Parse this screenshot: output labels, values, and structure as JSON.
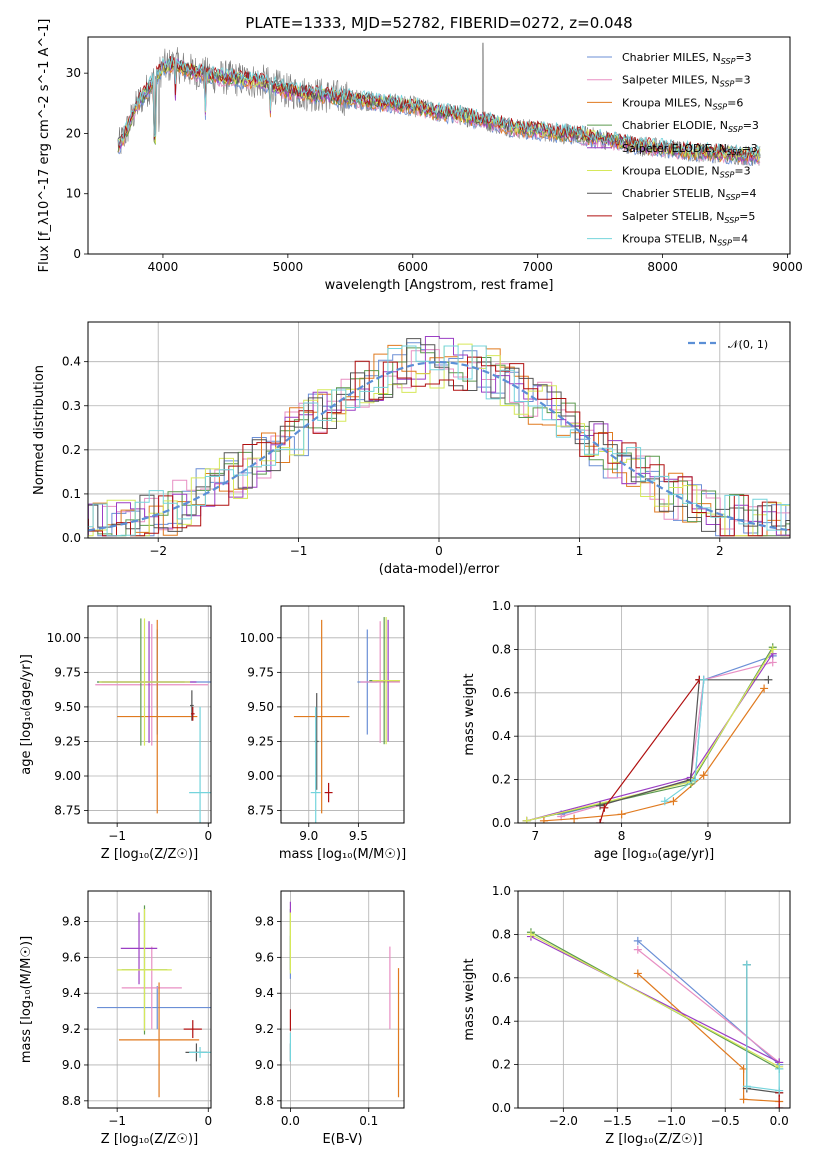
{
  "colors": {
    "Chabrier MILES": "#6b8fd6",
    "Salpeter MILES": "#e88fc3",
    "Kroupa MILES": "#e07a1f",
    "Chabrier ELODIE": "#5c9a4f",
    "Salpeter ELODIE": "#9b3fc4",
    "Kroupa ELODIE": "#d6e85a",
    "Chabrier STELIB": "#555555",
    "Salpeter STELIB": "#b01010",
    "Kroupa STELIB": "#74d4dc"
  },
  "chart_data": [
    {
      "id": "spectrum",
      "type": "line",
      "title": "PLATE=1333, MJD=52782, FIBERID=0272, z=0.048",
      "xlabel": "wavelength [Angstrom, rest frame]",
      "ylabel": "Flux [f_λ10^-17 erg cm^-2 s^-1 A^-1]",
      "xlim": [
        3400,
        9020
      ],
      "ylim": [
        0,
        36
      ],
      "xticks": [
        4000,
        5000,
        6000,
        7000,
        8000,
        9000
      ],
      "yticks": [
        0,
        10,
        20,
        30
      ],
      "grid": false,
      "legend_position": "top-right",
      "legend": [
        {
          "label": "Chabrier MILES, N",
          "sub": "SSP",
          "value": "=3"
        },
        {
          "label": "Salpeter MILES, N",
          "sub": "SSP",
          "value": "=3"
        },
        {
          "label": "Kroupa MILES, N",
          "sub": "SSP",
          "value": "=6"
        },
        {
          "label": "Chabrier ELODIE, N",
          "sub": "SSP",
          "value": "=3"
        },
        {
          "label": "Salpeter ELODIE, N",
          "sub": "SSP",
          "value": "=3"
        },
        {
          "label": "Kroupa ELODIE, N",
          "sub": "SSP",
          "value": "=3"
        },
        {
          "label": "Chabrier STELIB, N",
          "sub": "SSP",
          "value": "=4"
        },
        {
          "label": "Salpeter STELIB, N",
          "sub": "SSP",
          "value": "=5"
        },
        {
          "label": "Kroupa STELIB, N",
          "sub": "SSP",
          "value": "=4"
        }
      ],
      "continuum": {
        "x": [
          3650,
          3700,
          3800,
          3900,
          4000,
          4100,
          4200,
          4400,
          4600,
          4800,
          5000,
          5200,
          5400,
          5600,
          5800,
          6000,
          6200,
          6400,
          6600,
          6800,
          7000,
          7200,
          7400,
          7600,
          7800,
          8000,
          8200,
          8400,
          8600,
          8780
        ],
        "y": [
          18,
          20,
          25,
          28,
          31,
          31.5,
          30.5,
          29.5,
          29,
          28.5,
          27,
          26.5,
          26,
          25.5,
          25,
          24.5,
          23.5,
          23,
          22,
          21,
          20.5,
          20,
          19.5,
          18.8,
          18,
          17.5,
          17,
          16.8,
          16.5,
          16.2
        ]
      }
    },
    {
      "id": "residuals",
      "type": "line",
      "xlabel": "(data-model)/error",
      "ylabel": "Normed distribution",
      "xlim": [
        -2.5,
        2.5
      ],
      "ylim": [
        0,
        0.49
      ],
      "xticks": [
        -2,
        -1,
        0,
        1,
        2
      ],
      "yticks": [
        0.0,
        0.1,
        0.2,
        0.3,
        0.4
      ],
      "grid": true,
      "legend_position": "top-right",
      "legend": [
        "𝒩(0, 1)"
      ],
      "gaussian": {
        "mean": 0,
        "sigma": 1,
        "color": "#5b8fd6"
      }
    },
    {
      "id": "age-vs-Z",
      "type": "scatter",
      "xlabel": "Z [log₁₀(Z/Z☉)]",
      "ylabel": "age  [log₁₀(age/yr)]",
      "xlim": [
        -1.32,
        0.03
      ],
      "ylim": [
        8.66,
        10.23
      ],
      "xticks": [
        -1,
        0
      ],
      "yticks": [
        8.75,
        9.0,
        9.25,
        9.5,
        9.75,
        10.0
      ],
      "grid": true,
      "points": [
        {
          "series": "Chabrier MILES",
          "x": -0.56,
          "y": 9.68,
          "xerr": 0.66,
          "yerr": 0.38
        },
        {
          "series": "Salpeter MILES",
          "x": -0.62,
          "y": 9.66,
          "xerr": 0.62,
          "yerr": 0.44
        },
        {
          "series": "Kroupa MILES",
          "x": -0.56,
          "y": 9.43,
          "xerr": 0.44,
          "yerr": 0.7
        },
        {
          "series": "Chabrier ELODIE",
          "x": -0.74,
          "y": 9.68,
          "xerr": 0.48,
          "yerr": 0.46
        },
        {
          "series": "Salpeter ELODIE",
          "x": -0.65,
          "y": 9.68,
          "xerr": 0.52,
          "yerr": 0.44
        },
        {
          "series": "Kroupa ELODIE",
          "x": -0.7,
          "y": 9.68,
          "xerr": 0.5,
          "yerr": 0.46
        },
        {
          "series": "Chabrier STELIB",
          "x": -0.18,
          "y": 9.51,
          "xerr": 0.02,
          "yerr": 0.11
        },
        {
          "series": "Salpeter STELIB",
          "x": -0.17,
          "y": 9.45,
          "xerr": 0.02,
          "yerr": 0.05
        },
        {
          "series": "Kroupa STELIB",
          "x": -0.09,
          "y": 8.88,
          "xerr": 0.12,
          "yerr": 0.62
        }
      ]
    },
    {
      "id": "age-vs-mass",
      "type": "scatter",
      "xlabel": "mass [log₁₀(M/M☉)]",
      "ylabel": "",
      "xlim": [
        8.72,
        9.96
      ],
      "ylim": [
        8.66,
        10.23
      ],
      "xticks": [
        9.0,
        9.5
      ],
      "xtick_labels": [
        "9.0",
        "9.5"
      ],
      "yticks": [
        8.75,
        9.0,
        9.25,
        9.5,
        9.75,
        10.0
      ],
      "grid": true,
      "points": [
        {
          "series": "Chabrier MILES",
          "x": 9.59,
          "y": 9.68,
          "xerr": 0.1,
          "yerr": 0.38
        },
        {
          "series": "Salpeter MILES",
          "x": 9.72,
          "y": 9.68,
          "xerr": 0.2,
          "yerr": 0.44
        },
        {
          "series": "Kroupa MILES",
          "x": 9.13,
          "y": 9.43,
          "xerr": 0.28,
          "yerr": 0.7
        },
        {
          "series": "Chabrier ELODIE",
          "x": 9.76,
          "y": 9.69,
          "xerr": 0.15,
          "yerr": 0.46
        },
        {
          "series": "Salpeter ELODIE",
          "x": 9.8,
          "y": 9.69,
          "xerr": 0.12,
          "yerr": 0.44
        },
        {
          "series": "Kroupa ELODIE",
          "x": 9.78,
          "y": 9.69,
          "xerr": 0.14,
          "yerr": 0.46
        },
        {
          "series": "Chabrier STELIB",
          "x": 9.08,
          "y": 9.25,
          "xerr": 0.02,
          "yerr": 0.35
        },
        {
          "series": "Salpeter STELIB",
          "x": 9.2,
          "y": 8.88,
          "xerr": 0.04,
          "yerr": 0.07
        },
        {
          "series": "Kroupa STELIB",
          "x": 9.07,
          "y": 8.88,
          "xerr": 0.05,
          "yerr": 0.62
        }
      ]
    },
    {
      "id": "weight-vs-age",
      "type": "line",
      "xlabel": "age  [log₁₀(age/yr)]",
      "ylabel": "mass weight",
      "xlim": [
        6.8,
        9.95
      ],
      "ylim": [
        0.0,
        1.0
      ],
      "xticks": [
        7,
        8,
        9
      ],
      "yticks": [
        0.0,
        0.2,
        0.4,
        0.6,
        0.8,
        1.0
      ],
      "grid": true,
      "series": [
        {
          "name": "Chabrier MILES",
          "x": [
            7.3,
            8.85,
            8.95,
            9.75
          ],
          "y": [
            0.04,
            0.2,
            0.66,
            0.77
          ]
        },
        {
          "name": "Salpeter MILES",
          "x": [
            7.3,
            8.8,
            8.95,
            9.75
          ],
          "y": [
            0.03,
            0.2,
            0.66,
            0.74
          ]
        },
        {
          "name": "Kroupa MILES",
          "x": [
            7.1,
            7.45,
            8.0,
            8.6,
            8.95,
            9.65
          ],
          "y": [
            0.01,
            0.02,
            0.04,
            0.1,
            0.22,
            0.62
          ]
        },
        {
          "name": "Chabrier ELODIE",
          "x": [
            6.9,
            8.8,
            9.75
          ],
          "y": [
            0.01,
            0.18,
            0.81
          ]
        },
        {
          "name": "Salpeter ELODIE",
          "x": [
            6.9,
            8.8,
            9.75
          ],
          "y": [
            0.01,
            0.21,
            0.78
          ]
        },
        {
          "name": "Kroupa ELODIE",
          "x": [
            6.9,
            8.8,
            9.75
          ],
          "y": [
            0.01,
            0.19,
            0.8
          ]
        },
        {
          "name": "Chabrier STELIB",
          "x": [
            7.75,
            8.8,
            8.9,
            9.7
          ],
          "y": [
            0.08,
            0.2,
            0.66,
            0.66
          ]
        },
        {
          "name": "Salpeter STELIB",
          "x": [
            7.75,
            7.8,
            8.9
          ],
          "y": [
            0.0,
            0.07,
            0.66
          ]
        },
        {
          "name": "Kroupa STELIB",
          "x": [
            8.5,
            8.85,
            8.95
          ],
          "y": [
            0.1,
            0.2,
            0.66
          ]
        }
      ]
    },
    {
      "id": "mass-vs-Z",
      "type": "scatter",
      "xlabel": "Z [log₁₀(Z/Z☉)]",
      "ylabel": "mass [log₁₀(M/M☉)]",
      "xlim": [
        -1.32,
        0.03
      ],
      "ylim": [
        8.76,
        9.97
      ],
      "xticks": [
        -1,
        0
      ],
      "yticks": [
        8.8,
        9.0,
        9.2,
        9.4,
        9.6,
        9.8
      ],
      "grid": true,
      "points": [
        {
          "series": "Chabrier MILES",
          "x": -0.56,
          "y": 9.32,
          "xerr": 0.66,
          "yerr": 0.12
        },
        {
          "series": "Salpeter MILES",
          "x": -0.62,
          "y": 9.43,
          "xerr": 0.33,
          "yerr": 0.23
        },
        {
          "series": "Kroupa MILES",
          "x": -0.54,
          "y": 9.14,
          "xerr": 0.44,
          "yerr": 0.32
        },
        {
          "series": "Chabrier ELODIE",
          "x": -0.7,
          "y": 9.53,
          "xerr": 0.25,
          "yerr": 0.36
        },
        {
          "series": "Salpeter ELODIE",
          "x": -0.76,
          "y": 9.65,
          "xerr": 0.2,
          "yerr": 0.2
        },
        {
          "series": "Kroupa ELODIE",
          "x": -0.7,
          "y": 9.53,
          "xerr": 0.3,
          "yerr": 0.34
        },
        {
          "series": "Chabrier STELIB",
          "x": -0.13,
          "y": 9.07,
          "xerr": 0.12,
          "yerr": 0.05
        },
        {
          "series": "Salpeter STELIB",
          "x": -0.17,
          "y": 9.2,
          "xerr": 0.1,
          "yerr": 0.05
        },
        {
          "series": "Kroupa STELIB",
          "x": -0.09,
          "y": 9.07,
          "xerr": 0.12,
          "yerr": 0.03
        }
      ]
    },
    {
      "id": "mass-vs-EBV",
      "type": "scatter",
      "xlabel": "E(B-V)",
      "ylabel": "",
      "xlim": [
        -0.012,
        0.145
      ],
      "ylim": [
        8.76,
        9.97
      ],
      "xticks": [
        0.0,
        0.1
      ],
      "xtick_labels": [
        "0.0",
        "0.1"
      ],
      "yticks": [
        8.8,
        9.0,
        9.2,
        9.4,
        9.6,
        9.8
      ],
      "grid": true,
      "points": [
        {
          "series": "Chabrier MILES",
          "x": 0.0,
          "y": 9.6,
          "xerr": 0.0,
          "yerr": 0.12
        },
        {
          "series": "Salpeter MILES",
          "x": 0.127,
          "y": 9.43,
          "xerr": 0.0,
          "yerr": 0.23
        },
        {
          "series": "Kroupa MILES",
          "x": 0.138,
          "y": 9.18,
          "xerr": 0.0,
          "yerr": 0.36
        },
        {
          "series": "Chabrier ELODIE",
          "x": 0.0,
          "y": 9.7,
          "xerr": 0.0,
          "yerr": 0.17
        },
        {
          "series": "Salpeter ELODIE",
          "x": 0.0,
          "y": 9.88,
          "xerr": 0.0,
          "yerr": 0.03
        },
        {
          "series": "Kroupa ELODIE",
          "x": 0.0,
          "y": 9.68,
          "xerr": 0.0,
          "yerr": 0.17
        },
        {
          "series": "Chabrier STELIB",
          "x": 0.0,
          "y": 9.07,
          "xerr": 0.0,
          "yerr": 0.05
        },
        {
          "series": "Salpeter STELIB",
          "x": 0.0,
          "y": 9.25,
          "xerr": 0.0,
          "yerr": 0.06
        },
        {
          "series": "Kroupa STELIB",
          "x": 0.0,
          "y": 9.1,
          "xerr": 0.0,
          "yerr": 0.08
        }
      ]
    },
    {
      "id": "weight-vs-Z",
      "type": "line",
      "xlabel": "Z [log₁₀(Z/Z☉)]",
      "ylabel": "mass weight",
      "xlim": [
        -2.42,
        0.1
      ],
      "ylim": [
        0.0,
        1.0
      ],
      "xticks": [
        -2.0,
        -1.5,
        -1.0,
        -0.5,
        0.0
      ],
      "xtick_labels": [
        "−2.0",
        "−1.5",
        "−1.0",
        "−0.5",
        "0.0"
      ],
      "yticks": [
        0.0,
        0.2,
        0.4,
        0.6,
        0.8,
        1.0
      ],
      "grid": true,
      "series": [
        {
          "name": "Chabrier MILES",
          "x": [
            -1.31,
            0.0
          ],
          "y": [
            0.77,
            0.2
          ]
        },
        {
          "name": "Salpeter MILES",
          "x": [
            -1.31,
            0.0
          ],
          "y": [
            0.73,
            0.21
          ]
        },
        {
          "name": "Kroupa MILES",
          "x": [
            -1.31,
            -0.33,
            -0.33,
            0.0
          ],
          "y": [
            0.62,
            0.18,
            0.04,
            0.03
          ]
        },
        {
          "name": "Chabrier ELODIE",
          "x": [
            -2.3,
            0.0
          ],
          "y": [
            0.81,
            0.18
          ]
        },
        {
          "name": "Salpeter ELODIE",
          "x": [
            -2.3,
            0.0
          ],
          "y": [
            0.79,
            0.21
          ]
        },
        {
          "name": "Kroupa ELODIE",
          "x": [
            -2.3,
            0.0
          ],
          "y": [
            0.8,
            0.19
          ]
        },
        {
          "name": "Chabrier STELIB",
          "x": [
            -0.3,
            -0.3,
            0.0
          ],
          "y": [
            0.66,
            0.09,
            0.07
          ]
        },
        {
          "name": "Salpeter STELIB",
          "x": [
            0.0,
            0.0
          ],
          "y": [
            0.0,
            0.07
          ]
        },
        {
          "name": "Kroupa STELIB",
          "x": [
            -0.3,
            -0.3,
            0.0,
            0.0
          ],
          "y": [
            0.66,
            0.1,
            0.08,
            0.18
          ]
        }
      ]
    }
  ]
}
